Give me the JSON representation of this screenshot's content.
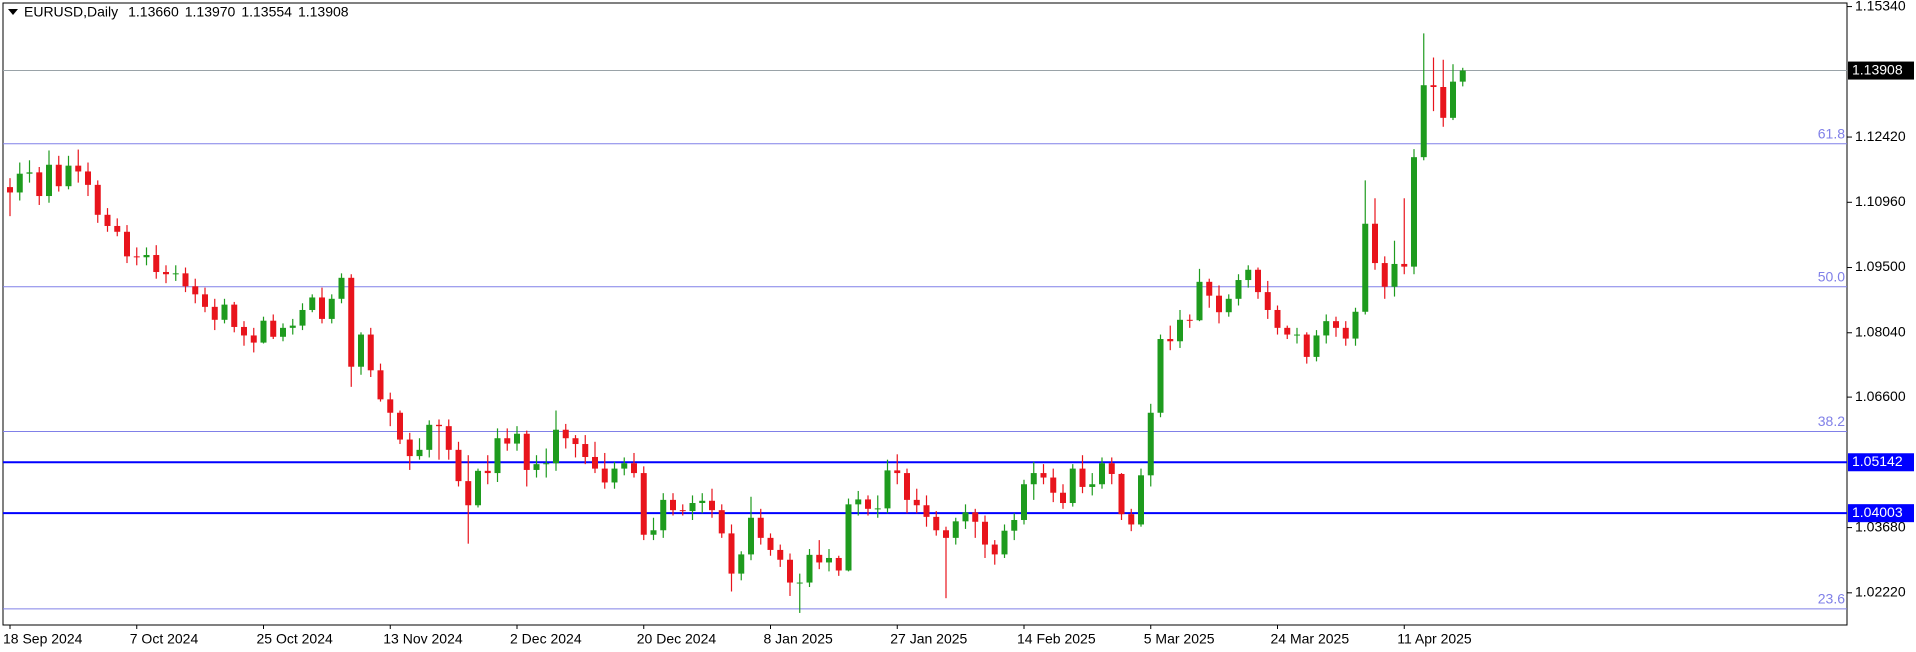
{
  "chart_data": {
    "type": "candlestick",
    "title": "EURUSD,Daily",
    "ohlc_labels": [
      "1.13660",
      "1.13970",
      "1.13554",
      "1.13908"
    ],
    "up_color": "#1e9b1e",
    "down_color": "#e8141c",
    "categories": [
      "18 Sep 2024",
      null,
      null,
      null,
      null,
      null,
      null,
      null,
      null,
      null,
      null,
      null,
      null,
      "7 Oct 2024",
      null,
      null,
      null,
      null,
      null,
      null,
      null,
      null,
      null,
      null,
      null,
      null,
      "25 Oct 2024",
      null,
      null,
      null,
      null,
      null,
      null,
      null,
      null,
      null,
      null,
      null,
      null,
      "13 Nov 2024",
      null,
      null,
      null,
      null,
      null,
      null,
      null,
      null,
      null,
      null,
      null,
      null,
      "2 Dec 2024",
      null,
      null,
      null,
      null,
      null,
      null,
      null,
      null,
      null,
      null,
      null,
      null,
      "20 Dec 2024",
      null,
      null,
      null,
      null,
      null,
      null,
      null,
      null,
      null,
      null,
      null,
      null,
      "8 Jan 2025",
      null,
      null,
      null,
      null,
      null,
      null,
      null,
      null,
      null,
      null,
      null,
      null,
      "27 Jan 2025",
      null,
      null,
      null,
      null,
      null,
      null,
      null,
      null,
      null,
      null,
      null,
      null,
      "14 Feb 2025",
      null,
      null,
      null,
      null,
      null,
      null,
      null,
      null,
      null,
      null,
      null,
      null,
      "5 Mar 2025",
      null,
      null,
      null,
      null,
      null,
      null,
      null,
      null,
      null,
      null,
      null,
      null,
      "24 Mar 2025",
      null,
      null,
      null,
      null,
      null,
      null,
      null,
      null,
      null,
      null,
      null,
      null,
      "11 Apr 2025",
      null,
      null,
      null,
      null,
      null,
      null
    ],
    "open": [
      1.113,
      1.1118,
      1.116,
      1.1163,
      1.111,
      1.118,
      1.1132,
      1.1178,
      1.1165,
      1.1135,
      1.1068,
      1.1043,
      1.103,
      1.0975,
      1.0973,
      1.0978,
      1.094,
      1.0935,
      1.0937,
      1.0908,
      1.089,
      1.0862,
      1.0833,
      1.0867,
      1.0817,
      1.0798,
      1.0782,
      1.0831,
      1.0795,
      1.0815,
      1.082,
      1.0855,
      1.0883,
      1.0835,
      1.088,
      1.0927,
      1.0728,
      1.08,
      1.072,
      1.0655,
      1.0625,
      1.0565,
      1.0528,
      1.0542,
      1.0598,
      1.0595,
      1.0542,
      1.0472,
      1.0418,
      1.0495,
      1.049,
      1.0568,
      1.0556,
      1.0578,
      1.0497,
      1.051,
      1.0512,
      1.0587,
      1.0568,
      1.0555,
      1.0526,
      1.05,
      1.0469,
      1.05,
      1.0512,
      1.049,
      1.0352,
      1.0362,
      1.043,
      1.0407,
      1.0405,
      1.0423,
      1.0428,
      1.0407,
      1.0355,
      1.0265,
      1.0308,
      1.039,
      1.0345,
      1.0318,
      1.0296,
      1.0245,
      1.0245,
      1.0307,
      1.029,
      1.03,
      1.0272,
      1.042,
      1.0431,
      1.041,
      1.0411,
      1.0496,
      1.049,
      1.043,
      1.0418,
      1.0392,
      1.0362,
      1.0345,
      1.0382,
      1.0402,
      1.0381,
      1.033,
      1.0308,
      1.0361,
      1.0385,
      1.0465,
      1.049,
      1.048,
      1.0446,
      1.0423,
      1.05,
      1.0459,
      1.0465,
      1.0512,
      1.0488,
      1.0398,
      1.0375,
      1.0485,
      1.0625,
      1.079,
      1.0785,
      1.0833,
      1.0832,
      1.0918,
      1.0887,
      1.085,
      1.088,
      1.0922,
      1.0945,
      1.0895,
      1.0855,
      1.0815,
      1.08,
      1.08,
      1.075,
      1.0798,
      1.083,
      1.0815,
      1.0791,
      1.0851,
      1.1048,
      1.096,
      1.0907,
      1.0958,
      1.0952,
      1.1197,
      1.1358,
      1.1354,
      1.1285,
      1.1366
    ],
    "high": [
      1.115,
      1.1185,
      1.119,
      1.1175,
      1.1212,
      1.12,
      1.12,
      1.1214,
      1.1185,
      1.1145,
      1.1083,
      1.106,
      1.1045,
      1.0995,
      1.0995,
      1.1,
      1.0955,
      1.0955,
      1.095,
      1.0925,
      1.0905,
      1.088,
      1.088,
      1.0873,
      1.083,
      1.0815,
      1.084,
      1.0845,
      1.0825,
      1.0835,
      1.087,
      1.089,
      1.0905,
      1.089,
      1.0937,
      1.0935,
      1.0805,
      1.0815,
      1.0735,
      1.067,
      1.063,
      1.058,
      1.0568,
      1.0608,
      1.061,
      1.061,
      1.056,
      1.053,
      1.05,
      1.053,
      1.059,
      1.059,
      1.0595,
      1.0585,
      1.053,
      1.0545,
      1.063,
      1.06,
      1.0575,
      1.0575,
      1.056,
      1.0535,
      1.0515,
      1.0525,
      1.0535,
      1.0505,
      1.039,
      1.0445,
      1.0445,
      1.042,
      1.044,
      1.0445,
      1.0455,
      1.042,
      1.0375,
      1.0315,
      1.0437,
      1.041,
      1.0355,
      1.033,
      1.031,
      1.0265,
      1.032,
      1.034,
      1.032,
      1.0305,
      1.0433,
      1.045,
      1.044,
      1.044,
      1.052,
      1.0532,
      1.05,
      1.0455,
      1.044,
      1.0405,
      1.037,
      1.039,
      1.042,
      1.041,
      1.0395,
      1.034,
      1.0375,
      1.04,
      1.0475,
      1.0515,
      1.051,
      1.05,
      1.0465,
      1.051,
      1.053,
      1.049,
      1.0525,
      1.0525,
      1.049,
      1.041,
      1.05,
      1.0645,
      1.08,
      1.082,
      1.0855,
      1.0845,
      1.0947,
      1.0925,
      1.091,
      1.089,
      1.0935,
      1.0955,
      1.095,
      1.092,
      1.0865,
      1.082,
      1.0815,
      1.0805,
      1.081,
      1.0845,
      1.084,
      1.083,
      1.086,
      1.1145,
      1.1105,
      1.0975,
      1.101,
      1.1105,
      1.1215,
      1.1474,
      1.142,
      1.1415,
      1.1405,
      1.1397
    ],
    "low": [
      1.1065,
      1.11,
      1.114,
      1.109,
      1.1095,
      1.112,
      1.1125,
      1.114,
      1.111,
      1.105,
      1.103,
      1.102,
      1.096,
      1.0955,
      1.0955,
      1.0925,
      1.0915,
      1.092,
      1.0895,
      1.087,
      1.085,
      1.081,
      1.0825,
      1.0805,
      1.0775,
      1.076,
      1.078,
      1.079,
      1.0785,
      1.08,
      1.081,
      1.085,
      1.0825,
      1.0825,
      1.087,
      1.0683,
      1.071,
      1.0705,
      1.065,
      1.0595,
      1.0555,
      1.0497,
      1.052,
      1.0525,
      1.052,
      1.052,
      1.046,
      1.0332,
      1.0413,
      1.0465,
      1.047,
      1.054,
      1.054,
      1.046,
      1.048,
      1.048,
      1.0495,
      1.0545,
      1.0525,
      1.051,
      1.049,
      1.0455,
      1.0455,
      1.0485,
      1.048,
      1.034,
      1.034,
      1.0345,
      1.0395,
      1.0395,
      1.0385,
      1.04,
      1.039,
      1.0345,
      1.0225,
      1.025,
      1.0295,
      1.033,
      1.0305,
      1.028,
      1.0215,
      1.0177,
      1.0235,
      1.0275,
      1.027,
      1.026,
      1.027,
      1.0395,
      1.0395,
      1.039,
      1.04,
      1.0465,
      1.04,
      1.04,
      1.037,
      1.035,
      1.021,
      1.033,
      1.0365,
      1.0345,
      1.03,
      1.0285,
      1.03,
      1.034,
      1.0375,
      1.043,
      1.0465,
      1.0425,
      1.041,
      1.0415,
      1.0445,
      1.044,
      1.0455,
      1.0465,
      1.0385,
      1.036,
      1.037,
      1.046,
      1.0615,
      1.0765,
      1.077,
      1.0815,
      1.083,
      1.086,
      1.0825,
      1.084,
      1.0865,
      1.0905,
      1.088,
      1.0835,
      1.08,
      1.079,
      1.078,
      1.0735,
      1.074,
      1.078,
      1.0795,
      1.0775,
      1.0775,
      1.0845,
      1.0945,
      1.088,
      1.0885,
      1.0935,
      1.0935,
      1.119,
      1.13,
      1.1265,
      1.128,
      1.13554
    ],
    "close": [
      1.1118,
      1.116,
      1.1163,
      1.111,
      1.118,
      1.1132,
      1.1178,
      1.1165,
      1.1135,
      1.1068,
      1.1043,
      1.103,
      1.0975,
      1.0973,
      1.0978,
      1.094,
      1.0935,
      1.0937,
      1.0908,
      1.089,
      1.0862,
      1.0833,
      1.0867,
      1.0817,
      1.0798,
      1.0782,
      1.0831,
      1.0795,
      1.0815,
      1.082,
      1.0855,
      1.0883,
      1.0835,
      1.088,
      1.0927,
      1.0728,
      1.08,
      1.072,
      1.0655,
      1.0625,
      1.0565,
      1.0528,
      1.0542,
      1.0598,
      1.0595,
      1.0542,
      1.0472,
      1.0418,
      1.0495,
      1.049,
      1.0568,
      1.0556,
      1.0578,
      1.0497,
      1.051,
      1.0512,
      1.0587,
      1.0568,
      1.0555,
      1.0526,
      1.05,
      1.0469,
      1.05,
      1.0512,
      1.049,
      1.0352,
      1.0362,
      1.043,
      1.0407,
      1.0405,
      1.0423,
      1.0428,
      1.0407,
      1.0355,
      1.0265,
      1.0308,
      1.039,
      1.0345,
      1.0318,
      1.0296,
      1.0245,
      1.0245,
      1.0307,
      1.029,
      1.03,
      1.0272,
      1.042,
      1.0431,
      1.041,
      1.0411,
      1.0496,
      1.049,
      1.043,
      1.0418,
      1.0392,
      1.0362,
      1.0345,
      1.0382,
      1.0402,
      1.0381,
      1.033,
      1.0308,
      1.0361,
      1.0385,
      1.0465,
      1.049,
      1.048,
      1.0446,
      1.0423,
      1.05,
      1.0459,
      1.0465,
      1.0512,
      1.0488,
      1.0398,
      1.0375,
      1.0485,
      1.0625,
      1.079,
      1.0785,
      1.0833,
      1.0832,
      1.0918,
      1.0887,
      1.085,
      1.088,
      1.0922,
      1.0945,
      1.0895,
      1.0855,
      1.0815,
      1.08,
      1.08,
      1.075,
      1.0798,
      1.083,
      1.0815,
      1.0791,
      1.0851,
      1.1048,
      1.096,
      1.0907,
      1.0958,
      1.0952,
      1.1197,
      1.1358,
      1.1354,
      1.1285,
      1.1366,
      1.13908
    ],
    "ylim": [
      1.015,
      1.1542
    ],
    "yticks": [
      {
        "value": 1.1534,
        "label": "1.15340"
      },
      {
        "value": 1.1242,
        "label": "1.12420"
      },
      {
        "value": 1.1096,
        "label": "1.10960"
      },
      {
        "value": 1.095,
        "label": "1.09500"
      },
      {
        "value": 1.0804,
        "label": "1.08040"
      },
      {
        "value": 1.066,
        "label": "1.06600"
      },
      {
        "value": 1.0368,
        "label": "1.03680"
      },
      {
        "value": 1.0222,
        "label": "1.02220"
      }
    ],
    "price_lines": [
      {
        "value": 1.13908,
        "label": "1.13908",
        "color": "#9aa3a8",
        "label_color": "#000000"
      },
      {
        "value": 1.05142,
        "label": "1.05142",
        "color": "#0000ff",
        "label_color": "#0000ff"
      },
      {
        "value": 1.04003,
        "label": "1.04003",
        "color": "#0000ff",
        "label_color": "#0000ff"
      }
    ],
    "fib_color": "#8080e8",
    "fib_levels": [
      {
        "label": "61.8",
        "price": 1.1227
      },
      {
        "label": "50.0",
        "price": 1.0907
      },
      {
        "label": "38.2",
        "price": 1.0583
      },
      {
        "label": "23.6",
        "price": 1.0186
      }
    ]
  }
}
